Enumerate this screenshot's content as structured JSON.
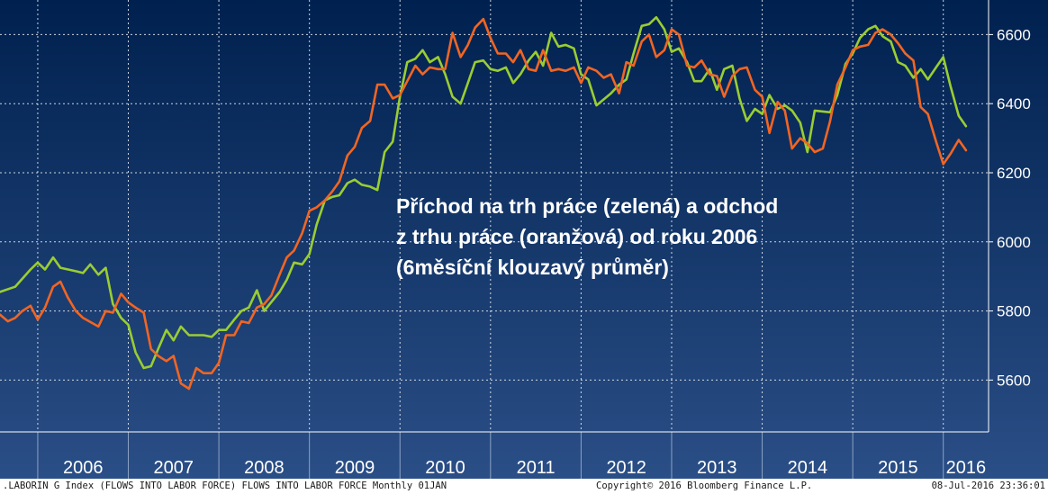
{
  "annotation": {
    "line1": "Příchod na trh práce (zelená) a odchod",
    "line2": "z trhu práce (oranžová) od roku 2006",
    "line3": "(6měsíční klouzavý průměr)"
  },
  "footer": {
    "left": ".LABORIN G Index (FLOWS INTO LABOR FORCE) FLOWS INTO  LABOR FORCE  Monthly 01JAN",
    "center": "Copyright© 2016 Bloomberg Finance L.P.",
    "right": "08-Jul-2016 23:36:01"
  },
  "colors": {
    "background_top": "#00214f",
    "background_bottom": "#2a4e86",
    "grid": "#ffffff",
    "green": "#9acd32",
    "orange": "#f26522",
    "text": "#ffffff"
  },
  "chart_data": {
    "type": "line",
    "x_unit": "year (decimal)",
    "xlim": [
      2005.583,
      2016.5
    ],
    "ylim": [
      5450,
      6700
    ],
    "y_ticks": [
      5600,
      5800,
      6000,
      6200,
      6400,
      6600
    ],
    "y_tick_labels": [
      "5600",
      "5800",
      "6000",
      "6200",
      "6400",
      "6600"
    ],
    "x_tick_labels": [
      "2006",
      "2007",
      "2008",
      "2009",
      "2010",
      "2011",
      "2012",
      "2013",
      "2014",
      "2015",
      "2016"
    ],
    "grid": true,
    "y_axis_side": "right",
    "series": [
      {
        "color": "green",
        "points": [
          [
            2005.58,
            5855
          ],
          [
            2005.75,
            5870
          ],
          [
            2005.92,
            5920
          ],
          [
            2006.0,
            5940
          ],
          [
            2006.08,
            5920
          ],
          [
            2006.17,
            5955
          ],
          [
            2006.25,
            5925
          ],
          [
            2006.42,
            5915
          ],
          [
            2006.5,
            5910
          ],
          [
            2006.58,
            5935
          ],
          [
            2006.67,
            5905
          ],
          [
            2006.75,
            5925
          ],
          [
            2006.83,
            5820
          ],
          [
            2006.92,
            5780
          ],
          [
            2007.0,
            5760
          ],
          [
            2007.08,
            5680
          ],
          [
            2007.17,
            5635
          ],
          [
            2007.25,
            5640
          ],
          [
            2007.33,
            5690
          ],
          [
            2007.42,
            5745
          ],
          [
            2007.5,
            5715
          ],
          [
            2007.58,
            5755
          ],
          [
            2007.67,
            5730
          ],
          [
            2007.83,
            5730
          ],
          [
            2007.92,
            5725
          ],
          [
            2008.0,
            5745
          ],
          [
            2008.08,
            5745
          ],
          [
            2008.17,
            5775
          ],
          [
            2008.25,
            5800
          ],
          [
            2008.33,
            5810
          ],
          [
            2008.42,
            5860
          ],
          [
            2008.5,
            5800
          ],
          [
            2008.67,
            5855
          ],
          [
            2008.75,
            5890
          ],
          [
            2008.83,
            5940
          ],
          [
            2008.92,
            5935
          ],
          [
            2009.0,
            5965
          ],
          [
            2009.08,
            6050
          ],
          [
            2009.17,
            6120
          ],
          [
            2009.25,
            6130
          ],
          [
            2009.33,
            6135
          ],
          [
            2009.42,
            6170
          ],
          [
            2009.5,
            6180
          ],
          [
            2009.58,
            6165
          ],
          [
            2009.67,
            6160
          ],
          [
            2009.75,
            6150
          ],
          [
            2009.83,
            6260
          ],
          [
            2009.92,
            6290
          ],
          [
            2010.0,
            6420
          ],
          [
            2010.08,
            6520
          ],
          [
            2010.17,
            6530
          ],
          [
            2010.25,
            6555
          ],
          [
            2010.33,
            6520
          ],
          [
            2010.42,
            6535
          ],
          [
            2010.5,
            6485
          ],
          [
            2010.58,
            6420
          ],
          [
            2010.67,
            6400
          ],
          [
            2010.75,
            6460
          ],
          [
            2010.83,
            6520
          ],
          [
            2010.92,
            6525
          ],
          [
            2011.0,
            6500
          ],
          [
            2011.08,
            6495
          ],
          [
            2011.17,
            6505
          ],
          [
            2011.25,
            6460
          ],
          [
            2011.33,
            6485
          ],
          [
            2011.42,
            6525
          ],
          [
            2011.5,
            6550
          ],
          [
            2011.58,
            6510
          ],
          [
            2011.67,
            6605
          ],
          [
            2011.75,
            6565
          ],
          [
            2011.83,
            6570
          ],
          [
            2011.92,
            6560
          ],
          [
            2012.0,
            6485
          ],
          [
            2012.08,
            6470
          ],
          [
            2012.17,
            6395
          ],
          [
            2012.33,
            6430
          ],
          [
            2012.42,
            6455
          ],
          [
            2012.5,
            6470
          ],
          [
            2012.58,
            6545
          ],
          [
            2012.67,
            6625
          ],
          [
            2012.75,
            6630
          ],
          [
            2012.83,
            6650
          ],
          [
            2012.92,
            6615
          ],
          [
            2013.0,
            6550
          ],
          [
            2013.08,
            6560
          ],
          [
            2013.17,
            6520
          ],
          [
            2013.25,
            6465
          ],
          [
            2013.33,
            6465
          ],
          [
            2013.42,
            6500
          ],
          [
            2013.5,
            6440
          ],
          [
            2013.58,
            6500
          ],
          [
            2013.67,
            6510
          ],
          [
            2013.75,
            6415
          ],
          [
            2013.83,
            6350
          ],
          [
            2013.92,
            6385
          ],
          [
            2014.0,
            6370
          ],
          [
            2014.08,
            6425
          ],
          [
            2014.17,
            6385
          ],
          [
            2014.25,
            6395
          ],
          [
            2014.33,
            6380
          ],
          [
            2014.42,
            6345
          ],
          [
            2014.5,
            6260
          ],
          [
            2014.58,
            6380
          ],
          [
            2014.75,
            6375
          ],
          [
            2014.83,
            6425
          ],
          [
            2014.92,
            6515
          ],
          [
            2015.0,
            6545
          ],
          [
            2015.08,
            6590
          ],
          [
            2015.17,
            6615
          ],
          [
            2015.25,
            6625
          ],
          [
            2015.33,
            6595
          ],
          [
            2015.42,
            6580
          ],
          [
            2015.5,
            6520
          ],
          [
            2015.58,
            6510
          ],
          [
            2015.67,
            6475
          ],
          [
            2015.75,
            6500
          ],
          [
            2015.83,
            6470
          ],
          [
            2015.92,
            6505
          ],
          [
            2016.0,
            6535
          ],
          [
            2016.08,
            6450
          ],
          [
            2016.17,
            6365
          ],
          [
            2016.25,
            6335
          ]
        ]
      },
      {
        "color": "orange",
        "points": [
          [
            2005.58,
            5790
          ],
          [
            2005.67,
            5770
          ],
          [
            2005.75,
            5780
          ],
          [
            2005.83,
            5800
          ],
          [
            2005.92,
            5815
          ],
          [
            2006.0,
            5775
          ],
          [
            2006.08,
            5810
          ],
          [
            2006.17,
            5870
          ],
          [
            2006.25,
            5885
          ],
          [
            2006.33,
            5840
          ],
          [
            2006.42,
            5800
          ],
          [
            2006.5,
            5780
          ],
          [
            2006.67,
            5755
          ],
          [
            2006.75,
            5800
          ],
          [
            2006.83,
            5795
          ],
          [
            2006.92,
            5850
          ],
          [
            2007.0,
            5825
          ],
          [
            2007.08,
            5810
          ],
          [
            2007.17,
            5795
          ],
          [
            2007.25,
            5690
          ],
          [
            2007.33,
            5670
          ],
          [
            2007.42,
            5655
          ],
          [
            2007.5,
            5670
          ],
          [
            2007.58,
            5590
          ],
          [
            2007.67,
            5575
          ],
          [
            2007.75,
            5635
          ],
          [
            2007.83,
            5620
          ],
          [
            2007.92,
            5620
          ],
          [
            2008.0,
            5650
          ],
          [
            2008.08,
            5730
          ],
          [
            2008.17,
            5730
          ],
          [
            2008.25,
            5770
          ],
          [
            2008.33,
            5765
          ],
          [
            2008.42,
            5810
          ],
          [
            2008.5,
            5820
          ],
          [
            2008.58,
            5845
          ],
          [
            2008.67,
            5905
          ],
          [
            2008.75,
            5955
          ],
          [
            2008.83,
            5975
          ],
          [
            2008.92,
            6025
          ],
          [
            2009.0,
            6090
          ],
          [
            2009.08,
            6100
          ],
          [
            2009.17,
            6120
          ],
          [
            2009.25,
            6145
          ],
          [
            2009.33,
            6175
          ],
          [
            2009.42,
            6250
          ],
          [
            2009.5,
            6275
          ],
          [
            2009.58,
            6330
          ],
          [
            2009.67,
            6350
          ],
          [
            2009.75,
            6455
          ],
          [
            2009.83,
            6455
          ],
          [
            2009.92,
            6415
          ],
          [
            2010.0,
            6425
          ],
          [
            2010.08,
            6465
          ],
          [
            2010.17,
            6510
          ],
          [
            2010.25,
            6485
          ],
          [
            2010.33,
            6505
          ],
          [
            2010.42,
            6500
          ],
          [
            2010.5,
            6500
          ],
          [
            2010.58,
            6605
          ],
          [
            2010.67,
            6535
          ],
          [
            2010.75,
            6570
          ],
          [
            2010.83,
            6620
          ],
          [
            2010.92,
            6645
          ],
          [
            2011.0,
            6590
          ],
          [
            2011.08,
            6545
          ],
          [
            2011.17,
            6545
          ],
          [
            2011.25,
            6520
          ],
          [
            2011.33,
            6555
          ],
          [
            2011.42,
            6500
          ],
          [
            2011.5,
            6495
          ],
          [
            2011.58,
            6555
          ],
          [
            2011.67,
            6495
          ],
          [
            2011.75,
            6500
          ],
          [
            2011.83,
            6495
          ],
          [
            2011.92,
            6505
          ],
          [
            2012.0,
            6460
          ],
          [
            2012.08,
            6505
          ],
          [
            2012.17,
            6495
          ],
          [
            2012.25,
            6475
          ],
          [
            2012.33,
            6485
          ],
          [
            2012.42,
            6430
          ],
          [
            2012.5,
            6520
          ],
          [
            2012.58,
            6510
          ],
          [
            2012.67,
            6580
          ],
          [
            2012.75,
            6600
          ],
          [
            2012.83,
            6535
          ],
          [
            2012.92,
            6555
          ],
          [
            2013.0,
            6615
          ],
          [
            2013.08,
            6600
          ],
          [
            2013.17,
            6510
          ],
          [
            2013.25,
            6505
          ],
          [
            2013.33,
            6525
          ],
          [
            2013.42,
            6485
          ],
          [
            2013.5,
            6480
          ],
          [
            2013.58,
            6420
          ],
          [
            2013.67,
            6480
          ],
          [
            2013.75,
            6500
          ],
          [
            2013.83,
            6505
          ],
          [
            2013.92,
            6440
          ],
          [
            2014.0,
            6420
          ],
          [
            2014.08,
            6315
          ],
          [
            2014.17,
            6405
          ],
          [
            2014.25,
            6380
          ],
          [
            2014.33,
            6270
          ],
          [
            2014.42,
            6300
          ],
          [
            2014.5,
            6285
          ],
          [
            2014.58,
            6260
          ],
          [
            2014.67,
            6270
          ],
          [
            2014.75,
            6350
          ],
          [
            2014.83,
            6455
          ],
          [
            2014.92,
            6505
          ],
          [
            2015.0,
            6555
          ],
          [
            2015.08,
            6565
          ],
          [
            2015.17,
            6570
          ],
          [
            2015.25,
            6605
          ],
          [
            2015.33,
            6615
          ],
          [
            2015.42,
            6600
          ],
          [
            2015.5,
            6575
          ],
          [
            2015.58,
            6545
          ],
          [
            2015.67,
            6525
          ],
          [
            2015.75,
            6390
          ],
          [
            2015.83,
            6370
          ],
          [
            2015.92,
            6290
          ],
          [
            2016.0,
            6225
          ],
          [
            2016.08,
            6255
          ],
          [
            2016.17,
            6295
          ],
          [
            2016.25,
            6265
          ]
        ]
      }
    ]
  }
}
